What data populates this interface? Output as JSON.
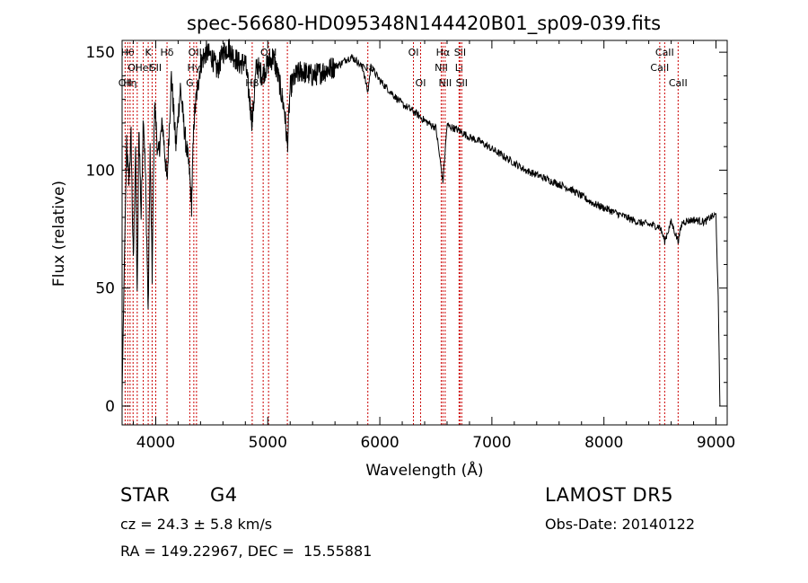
{
  "chart_data": {
    "type": "line",
    "title": "spec-56680-HD095348N144420B01_sp09-039.fits",
    "xlabel": "Wavelength (Å)",
    "ylabel": "Flux (relative)",
    "xlim": [
      3700,
      9100
    ],
    "ylim": [
      -8,
      155
    ],
    "xticks": [
      4000,
      5000,
      6000,
      7000,
      8000,
      9000
    ],
    "yticks": [
      0,
      50,
      100,
      150
    ],
    "grid": false,
    "line_color": "#000000",
    "marker_color": "#cc0000",
    "series": [
      {
        "x": [
          3700,
          3720,
          3740,
          3760,
          3780,
          3800,
          3820,
          3835,
          3850,
          3870,
          3890,
          3910,
          3933,
          3950,
          3968,
          3990,
          4020,
          4060,
          4101,
          4140,
          4180,
          4220,
          4260,
          4300,
          4320,
          4340,
          4360,
          4400,
          4450,
          4500,
          4550,
          4600,
          4650,
          4700,
          4750,
          4800,
          4861,
          4900,
          4950,
          5000,
          5050,
          5100,
          5150,
          5175,
          5200,
          5250,
          5300,
          5350,
          5400,
          5450,
          5500,
          5550,
          5600,
          5650,
          5700,
          5750,
          5800,
          5850,
          5893,
          5920,
          6000,
          6100,
          6200,
          6300,
          6400,
          6500,
          6563,
          6600,
          6700,
          6800,
          6900,
          7000,
          7100,
          7200,
          7300,
          7400,
          7500,
          7600,
          7700,
          7800,
          7900,
          8000,
          8100,
          8200,
          8300,
          8400,
          8498,
          8542,
          8600,
          8662,
          8700,
          8800,
          8900,
          8950,
          9000,
          9020,
          9035
        ],
        "y": [
          5,
          60,
          110,
          95,
          115,
          60,
          110,
          45,
          120,
          80,
          125,
          95,
          40,
          110,
          55,
          130,
          105,
          120,
          95,
          140,
          110,
          135,
          115,
          100,
          85,
          120,
          130,
          145,
          150,
          148,
          142,
          150,
          152,
          148,
          145,
          146,
          120,
          145,
          140,
          145,
          148,
          138,
          125,
          110,
          135,
          140,
          142,
          141,
          140,
          141,
          142,
          143,
          144,
          145,
          147,
          148,
          146,
          143,
          133,
          144,
          138,
          133,
          128,
          125,
          121,
          118,
          95,
          119,
          117,
          114,
          112,
          109,
          106,
          103,
          100,
          98,
          96,
          94,
          92,
          89,
          86,
          84,
          82,
          80,
          78,
          77,
          76,
          70,
          78,
          70,
          78,
          79,
          78,
          80,
          81,
          45,
          0
        ]
      }
    ],
    "markers": [
      {
        "x": 3727,
        "label": "OII",
        "row": 3
      },
      {
        "x": 3750,
        "label": "Hθ",
        "row": 1
      },
      {
        "x": 3771,
        "label": "Hη",
        "row": 3
      },
      {
        "x": 3798,
        "label": "OI",
        "row": 2
      },
      {
        "x": 3835,
        "label": "",
        "row": 0
      },
      {
        "x": 3889,
        "label": "HeI",
        "row": 2
      },
      {
        "x": 3933,
        "label": "K",
        "row": 1
      },
      {
        "x": 3968,
        "label": "",
        "row": 0
      },
      {
        "x": 4000,
        "label": "SII",
        "row": 2
      },
      {
        "x": 4101,
        "label": "Hδ",
        "row": 1
      },
      {
        "x": 4304,
        "label": "G",
        "row": 3
      },
      {
        "x": 4340,
        "label": "Hγ",
        "row": 2
      },
      {
        "x": 4364,
        "label": "OIII",
        "row": 1
      },
      {
        "x": 4861,
        "label": "Hβ",
        "row": 3
      },
      {
        "x": 4959,
        "label": "",
        "row": 0
      },
      {
        "x": 5007,
        "label": "OIII",
        "row": 1
      },
      {
        "x": 5175,
        "label": "",
        "row": 0
      },
      {
        "x": 5893,
        "label": "Na",
        "row": 2
      },
      {
        "x": 6300,
        "label": "OI",
        "row": 1
      },
      {
        "x": 6364,
        "label": "OI",
        "row": 3
      },
      {
        "x": 6548,
        "label": "NII",
        "row": 2
      },
      {
        "x": 6563,
        "label": "Hα",
        "row": 1
      },
      {
        "x": 6583,
        "label": "NII",
        "row": 3
      },
      {
        "x": 6707,
        "label": "Li",
        "row": 2
      },
      {
        "x": 6716,
        "label": "SII",
        "row": 1
      },
      {
        "x": 6731,
        "label": "SII",
        "row": 3
      },
      {
        "x": 8498,
        "label": "CaII",
        "row": 2
      },
      {
        "x": 8542,
        "label": "CaII",
        "row": 1
      },
      {
        "x": 8662,
        "label": "CaII",
        "row": 3
      }
    ]
  },
  "info": {
    "class_label": "STAR",
    "subclass": "G4",
    "survey": "LAMOST DR5",
    "cz": "cz = 24.3 ± 5.8 km/s",
    "obs_date": "Obs-Date: 20140122",
    "coords": "RA = 149.22967, DEC =  15.55881"
  }
}
